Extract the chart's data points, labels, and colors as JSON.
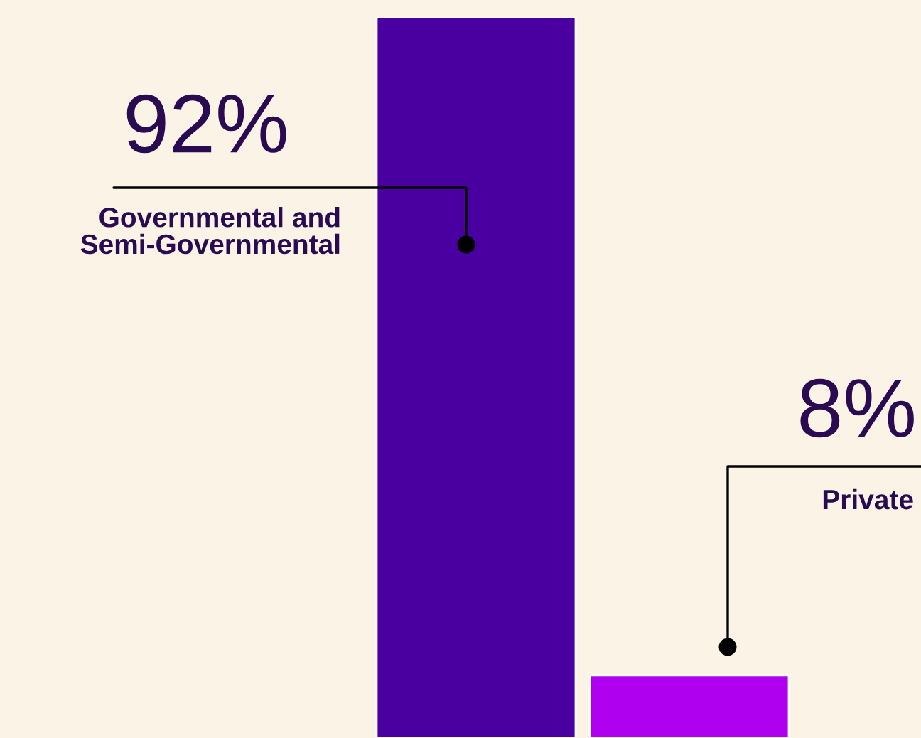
{
  "chart_data": {
    "type": "bar",
    "categories": [
      null,
      null
    ],
    "values": [
      92,
      8
    ],
    "value_labels": [
      "92%",
      "8%"
    ],
    "annotations": [
      "Governmental and\nSemi-Governmental",
      "Private"
    ],
    "colors": [
      "#4a00a0",
      "#b000f0"
    ]
  }
}
